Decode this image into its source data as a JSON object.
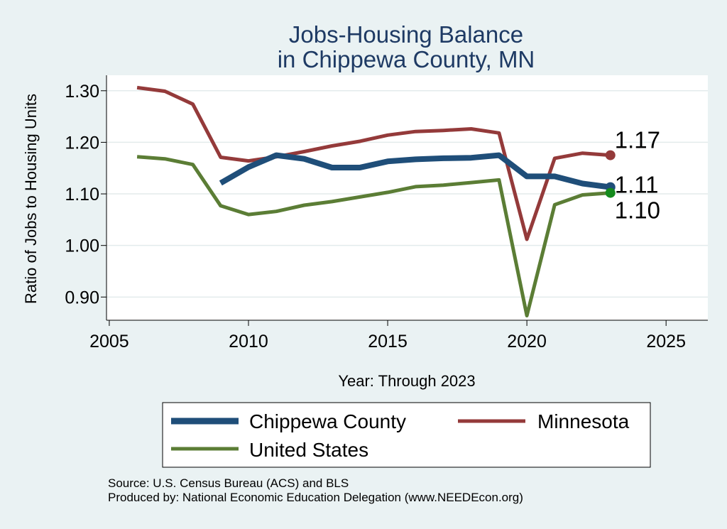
{
  "chart_data": {
    "type": "line",
    "title": [
      "Jobs-Housing Balance",
      "in Chippewa County, MN"
    ],
    "xlabel": "Year: Through 2023",
    "ylabel": "Ratio of Jobs to Housing Units",
    "xlim": [
      2004.9,
      2026.5
    ],
    "ylim": [
      0.855,
      1.33
    ],
    "x_ticks": [
      2005,
      2010,
      2015,
      2020,
      2025
    ],
    "y_ticks": [
      0.9,
      1.0,
      1.1,
      1.2,
      1.3
    ],
    "y_tick_labels": [
      "0.90",
      "1.00",
      "1.10",
      "1.20",
      "1.30"
    ],
    "grid": true,
    "legend_position": "bottom",
    "series": [
      {
        "name": "Chippewa County",
        "color": "#1f4e79",
        "x": [
          2009,
          2010,
          2011,
          2012,
          2013,
          2014,
          2015,
          2016,
          2017,
          2018,
          2019,
          2020,
          2021,
          2022,
          2023
        ],
        "values": [
          1.121,
          1.152,
          1.175,
          1.168,
          1.151,
          1.151,
          1.163,
          1.167,
          1.169,
          1.17,
          1.175,
          1.134,
          1.134,
          1.12,
          1.113
        ],
        "end_label": "1.11"
      },
      {
        "name": "Minnesota",
        "color": "#943a3a",
        "x": [
          2006,
          2007,
          2008,
          2009,
          2010,
          2011,
          2012,
          2013,
          2014,
          2015,
          2016,
          2017,
          2018,
          2019,
          2020,
          2021,
          2022,
          2023
        ],
        "values": [
          1.306,
          1.299,
          1.274,
          1.171,
          1.164,
          1.172,
          1.182,
          1.193,
          1.202,
          1.214,
          1.221,
          1.223,
          1.226,
          1.218,
          1.012,
          1.169,
          1.179,
          1.175
        ],
        "end_label": "1.17"
      },
      {
        "name": "United States",
        "color": "#5b7d35",
        "x": [
          2006,
          2007,
          2008,
          2009,
          2010,
          2011,
          2012,
          2013,
          2014,
          2015,
          2016,
          2017,
          2018,
          2019,
          2020,
          2021,
          2022,
          2023
        ],
        "values": [
          1.172,
          1.168,
          1.157,
          1.077,
          1.06,
          1.066,
          1.078,
          1.085,
          1.094,
          1.103,
          1.114,
          1.117,
          1.122,
          1.127,
          0.864,
          1.079,
          1.098,
          1.102
        ],
        "end_label": "1.10"
      }
    ],
    "source": "Source: U.S. Census Bureau (ACS) and BLS",
    "producer": "Produced by: National Economic Education Delegation (www.NEEDEcon.org)"
  }
}
